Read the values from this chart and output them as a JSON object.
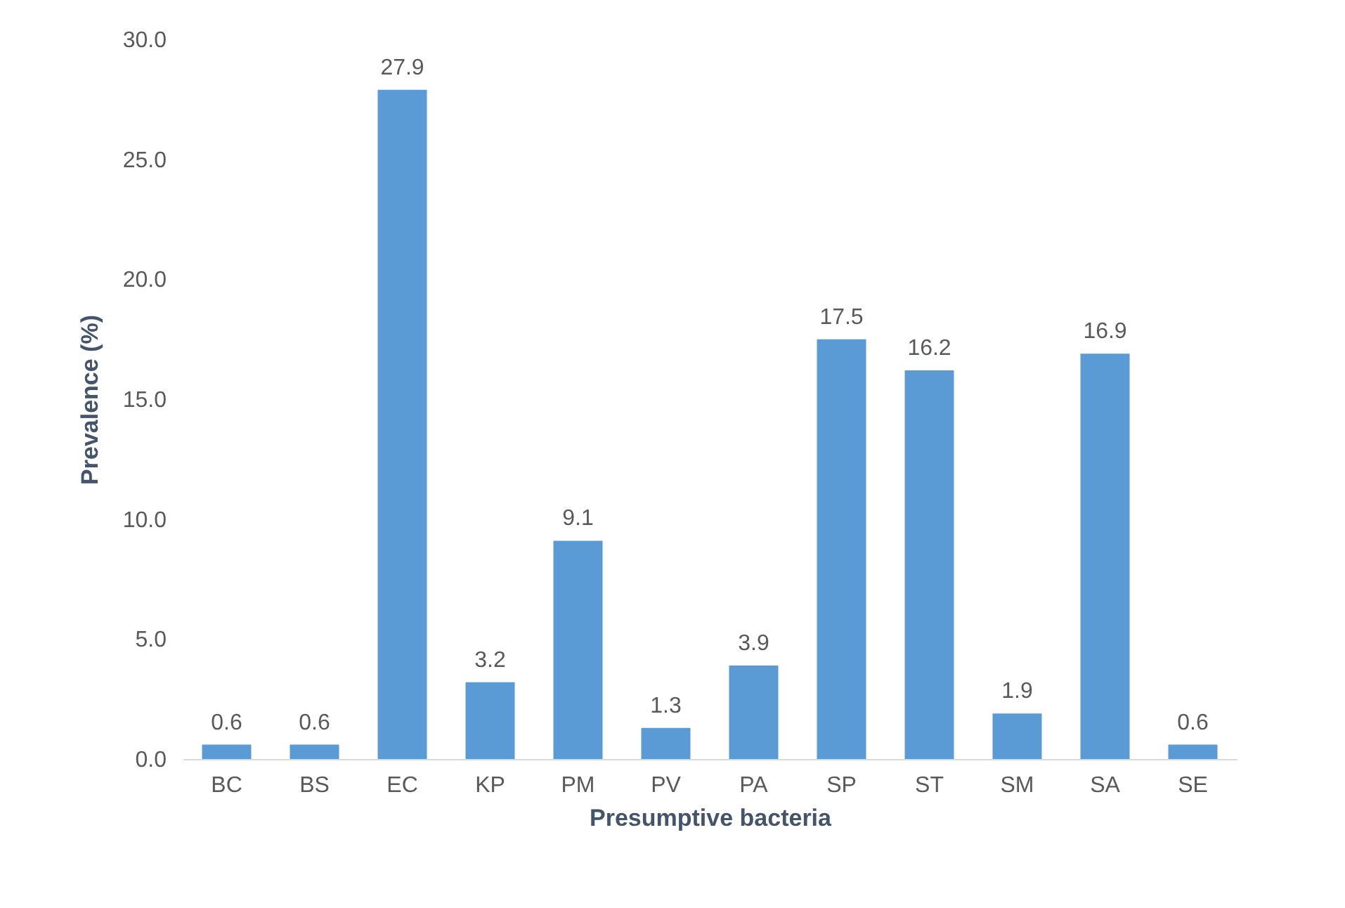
{
  "chart_data": {
    "type": "bar",
    "xlabel": "Presumptive bacteria",
    "ylabel": "Prevalence (%)",
    "categories": [
      "BC",
      "BS",
      "EC",
      "KP",
      "PM",
      "PV",
      "PA",
      "SP",
      "ST",
      "SM",
      "SA",
      "SE"
    ],
    "values": [
      0.6,
      0.6,
      27.9,
      3.2,
      9.1,
      1.3,
      3.9,
      17.5,
      16.2,
      1.9,
      16.9,
      0.6
    ],
    "color": "#5b9bd5",
    "ylim": [
      0,
      30
    ],
    "yticks": [
      {
        "value": 0,
        "label": "0.0"
      },
      {
        "value": 5,
        "label": "5.0"
      },
      {
        "value": 10,
        "label": "10.0"
      },
      {
        "value": 15,
        "label": "15.0"
      },
      {
        "value": 20,
        "label": "20.0"
      },
      {
        "value": 25,
        "label": "25.0"
      },
      {
        "value": 30,
        "label": "30.0"
      }
    ],
    "grid": false,
    "data_labels": true
  }
}
